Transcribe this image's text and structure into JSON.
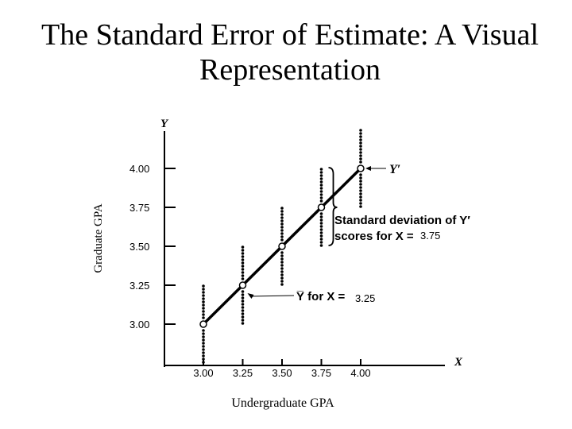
{
  "slide": {
    "title": "The Standard Error of Estimate: A Visual Representation"
  },
  "chart_data": {
    "type": "scatter",
    "xlabel": "Undergraduate GPA",
    "ylabel": "Graduate GPA",
    "x_axis_symbol": "X",
    "y_axis_symbol": "Y",
    "xlim": [
      3.0,
      4.0
    ],
    "ylim": [
      3.0,
      4.0
    ],
    "x_ticks": [
      "3.00",
      "3.25",
      "3.50",
      "3.75",
      "4.00"
    ],
    "y_ticks": [
      "3.00",
      "3.25",
      "3.50",
      "3.75",
      "4.00"
    ],
    "grid": false,
    "regression_line": {
      "points": [
        {
          "x": 3.0,
          "y": 3.0
        },
        {
          "x": 3.25,
          "y": 3.25
        },
        {
          "x": 3.5,
          "y": 3.5
        },
        {
          "x": 3.75,
          "y": 3.75
        },
        {
          "x": 4.0,
          "y": 4.0
        }
      ]
    },
    "score_distributions": [
      {
        "x": 3.0,
        "mean": 3.0
      },
      {
        "x": 3.25,
        "mean": 3.25
      },
      {
        "x": 3.5,
        "mean": 3.5
      },
      {
        "x": 3.75,
        "mean": 3.75
      },
      {
        "x": 4.0,
        "mean": 4.0
      }
    ],
    "annotations": {
      "line_label": "Y′",
      "std_dev_line1": "Standard deviation of Y′",
      "std_dev_line2": "scores for X =",
      "std_dev_value": "3.75",
      "mean_line": "Y̅ for X =",
      "mean_value": "3.25"
    }
  }
}
